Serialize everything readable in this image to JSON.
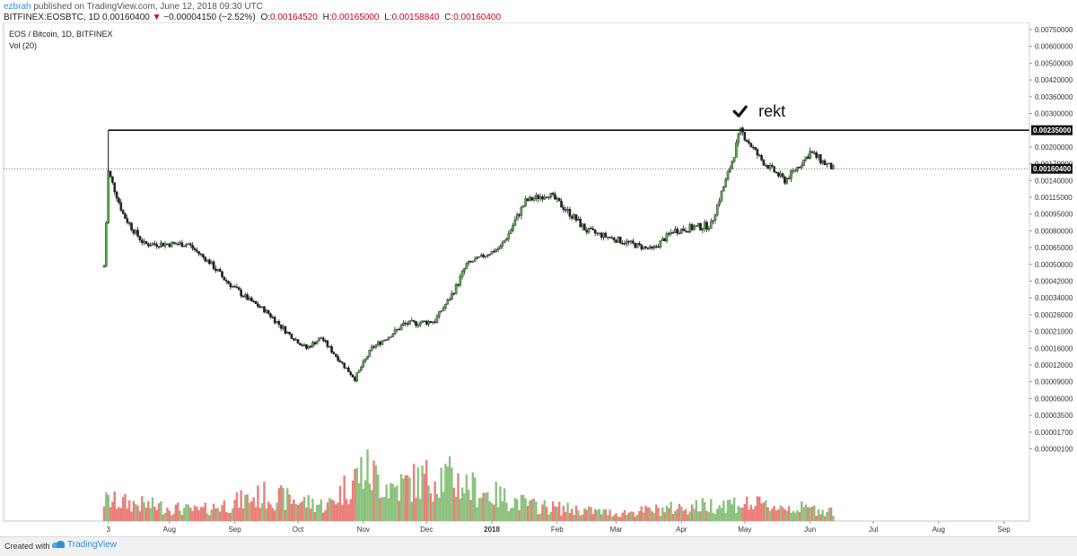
{
  "header": {
    "username": "ezbrah",
    "published_text": "published on TradingView.com, June 12, 2018 09:30 UTC",
    "symbol": "BITFINEX:EOSBTC, 1D",
    "last": "0.00160400",
    "arrow": "▼",
    "change": "−0.00004150 (−2.52%)",
    "o_label": "O:",
    "o_value": "0.00164520",
    "h_label": "H:",
    "h_value": "0.00165000",
    "l_label": "L:",
    "l_value": "0.00158840",
    "c_label": "C:",
    "c_value": "0.00160400"
  },
  "footer": {
    "created_with": "Created with",
    "brand": "TradingView",
    "brand_icon": "tradingview-logo-icon"
  },
  "colors": {
    "up": "#53b042",
    "down": "#e34b46",
    "vol_up": "#8cc27e",
    "vol_down": "#ea7f7a",
    "accent": "#2f8fd8"
  },
  "chart_data": {
    "type": "candlestick",
    "title": "EOS / Bitcoin, 1D, BITFINEX",
    "volume_legend": "Vol (20)",
    "y_scale": "log",
    "y_ticks": [
      "0.00750000",
      "0.00600000",
      "0.00500000",
      "0.00420000",
      "0.00360000",
      "0.00300000",
      "0.00235000",
      "0.00200000",
      "0.00170000",
      "0.00160400",
      "0.00140000",
      "0.00115000",
      "0.00095000",
      "0.00080000",
      "0.00065000",
      "0.00050000",
      "0.00042000",
      "0.00034000",
      "0.00026000",
      "0.00021000",
      "0.00016000",
      "0.00012000",
      "0.00009000",
      "0.00006000",
      "0.00003500",
      "0.00001700",
      "0.00000100"
    ],
    "y_tick_values": [
      0.0075,
      0.006,
      0.005,
      0.0042,
      0.0036,
      0.003,
      0.00235,
      0.002,
      0.0017,
      0.001604,
      0.0014,
      0.00115,
      0.00095,
      0.0008,
      0.00065,
      0.0005,
      0.00042,
      0.00034,
      0.00026,
      0.00021,
      0.00016,
      0.00012,
      9e-05,
      6e-05,
      3.5e-05,
      1.7e-05,
      1e-06
    ],
    "x_ticks": [
      "3",
      "Aug",
      "Sep",
      "Oct",
      "Nov",
      "Dec",
      "2018",
      "Feb",
      "Mar",
      "Apr",
      "May",
      "Jun",
      "Jul",
      "Aug",
      "Sep"
    ],
    "x_tick_dates": [
      "2017-07-03",
      "2017-08-01",
      "2017-09-01",
      "2017-10-01",
      "2017-11-01",
      "2017-12-01",
      "2018-01-01",
      "2018-02-01",
      "2018-03-01",
      "2018-04-01",
      "2018-05-01",
      "2018-06-01",
      "2018-07-01",
      "2018-08-01",
      "2018-09-01"
    ],
    "bold_ticks": [
      "2018"
    ],
    "date_range": [
      "2017-07-01",
      "2018-06-12"
    ],
    "key_points": [
      {
        "date": "2017-07-01",
        "value": 0.00049
      },
      {
        "date": "2017-07-03",
        "value": 0.00155
      },
      {
        "date": "2017-07-10",
        "value": 0.00095
      },
      {
        "date": "2017-07-20",
        "value": 0.00068
      },
      {
        "date": "2017-08-10",
        "value": 0.00068
      },
      {
        "date": "2017-08-25",
        "value": 0.00045
      },
      {
        "date": "2017-09-15",
        "value": 0.00028
      },
      {
        "date": "2017-10-05",
        "value": 0.00016
      },
      {
        "date": "2017-10-12",
        "value": 0.00019
      },
      {
        "date": "2017-10-28",
        "value": 9.5e-05
      },
      {
        "date": "2017-11-05",
        "value": 0.00016
      },
      {
        "date": "2017-11-20",
        "value": 0.00023
      },
      {
        "date": "2017-12-05",
        "value": 0.00024
      },
      {
        "date": "2017-12-20",
        "value": 0.0005
      },
      {
        "date": "2018-01-05",
        "value": 0.00065
      },
      {
        "date": "2018-01-17",
        "value": 0.0011
      },
      {
        "date": "2018-01-28",
        "value": 0.0012
      },
      {
        "date": "2018-02-15",
        "value": 0.0008
      },
      {
        "date": "2018-03-01",
        "value": 0.00072
      },
      {
        "date": "2018-03-18",
        "value": 0.00063
      },
      {
        "date": "2018-03-28",
        "value": 0.0008
      },
      {
        "date": "2018-04-15",
        "value": 0.00085
      },
      {
        "date": "2018-04-22",
        "value": 0.0014
      },
      {
        "date": "2018-04-29",
        "value": 0.00235
      },
      {
        "date": "2018-05-08",
        "value": 0.0018
      },
      {
        "date": "2018-05-20",
        "value": 0.0014
      },
      {
        "date": "2018-06-01",
        "value": 0.0019
      },
      {
        "date": "2018-06-12",
        "value": 0.001604
      }
    ],
    "volume_key_points": [
      {
        "date": "2017-07-01",
        "value": 0.4
      },
      {
        "date": "2017-08-15",
        "value": 0.2
      },
      {
        "date": "2017-09-15",
        "value": 0.5
      },
      {
        "date": "2017-10-15",
        "value": 0.3
      },
      {
        "date": "2017-11-01",
        "value": 1.0
      },
      {
        "date": "2017-11-15",
        "value": 0.65
      },
      {
        "date": "2017-12-08",
        "value": 0.9
      },
      {
        "date": "2017-12-25",
        "value": 0.6
      },
      {
        "date": "2018-01-20",
        "value": 0.3
      },
      {
        "date": "2018-03-01",
        "value": 0.15
      },
      {
        "date": "2018-04-25",
        "value": 0.35
      },
      {
        "date": "2018-06-12",
        "value": 0.2
      }
    ],
    "horizontal_levels": [
      {
        "value": 0.00235,
        "label": "0.00235000",
        "style": "solid"
      },
      {
        "value": 0.001604,
        "label": "0.00160400",
        "style": "dotted"
      }
    ],
    "annotation": {
      "text": "rekt",
      "icon": "checkmark-icon",
      "date": "2018-04-29"
    }
  }
}
